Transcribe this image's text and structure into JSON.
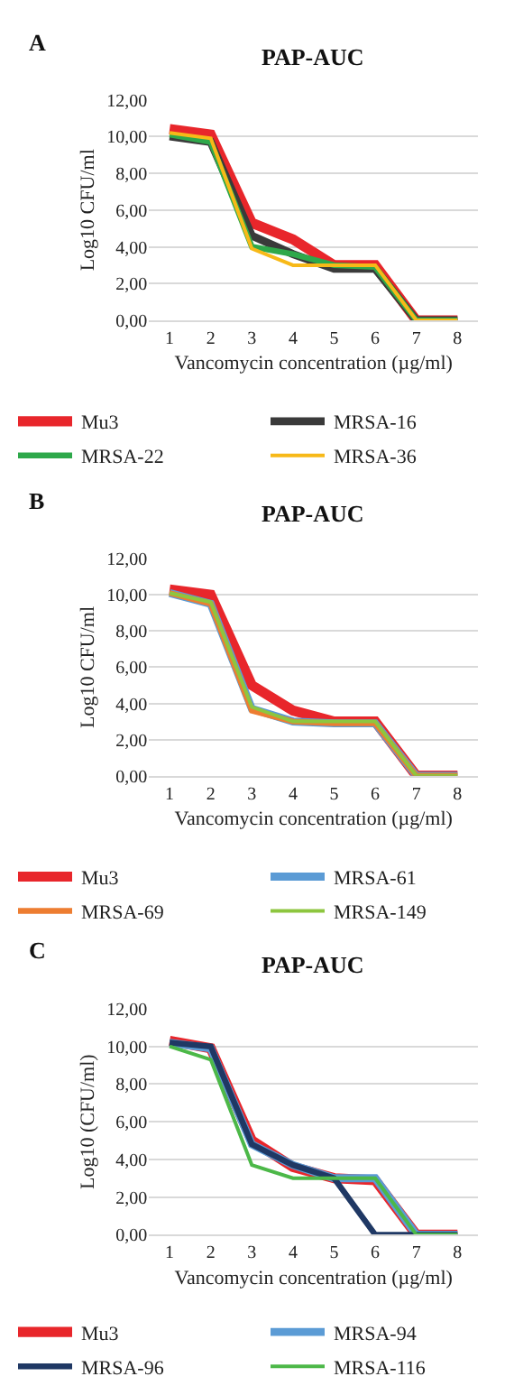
{
  "chart_data": [
    {
      "type": "line",
      "title": "PAP-AUC",
      "annotations": [
        "A"
      ],
      "xlabel": "Vancomycin concentration (µg/ml)",
      "ylabel": "Log10 CFU/ml",
      "categories": [
        "1",
        "2",
        "3",
        "4",
        "5",
        "6",
        "7",
        "8"
      ],
      "ylim": [
        0,
        12
      ],
      "yticks": [
        {
          "value": 0,
          "label": "0,00"
        },
        {
          "value": 2,
          "label": "2,00"
        },
        {
          "value": 4,
          "label": "4,00"
        },
        {
          "value": 6,
          "label": "6,00"
        },
        {
          "value": 8,
          "label": "8,00"
        },
        {
          "value": 10,
          "label": "10,00"
        },
        {
          "value": 12,
          "label": "12,00"
        }
      ],
      "grid": "y",
      "legend": "bottom",
      "marker": "none",
      "line_style": "solid",
      "series": [
        {
          "name": "Mu3",
          "color": "#e8262b",
          "values": [
            10.4,
            10.1,
            5.3,
            4.4,
            3.0,
            3.0,
            0,
            0
          ]
        },
        {
          "name": "MRSA-16",
          "color": "#3a3a3a",
          "values": [
            10.0,
            9.7,
            4.6,
            3.6,
            2.8,
            2.8,
            0,
            0
          ]
        },
        {
          "name": "MRSA-22",
          "color": "#2ea84a",
          "values": [
            10.1,
            9.7,
            4.0,
            3.6,
            3.0,
            2.9,
            0,
            0
          ]
        },
        {
          "name": "MRSA-36",
          "color": "#f7b918",
          "values": [
            10.2,
            9.9,
            3.9,
            3.0,
            3.0,
            3.0,
            0,
            0
          ]
        }
      ]
    },
    {
      "type": "line",
      "title": "PAP-AUC",
      "annotations": [
        "B"
      ],
      "xlabel": "Vancomycin concentration (µg/ml)",
      "ylabel": "Log10 CFU/ml",
      "categories": [
        "1",
        "2",
        "3",
        "4",
        "5",
        "6",
        "7",
        "8"
      ],
      "ylim": [
        0,
        12
      ],
      "yticks": [
        {
          "value": 0,
          "label": "0,00"
        },
        {
          "value": 2,
          "label": "2,00"
        },
        {
          "value": 4,
          "label": "4,00"
        },
        {
          "value": 6,
          "label": "6,00"
        },
        {
          "value": 8,
          "label": "8,00"
        },
        {
          "value": 10,
          "label": "10,00"
        },
        {
          "value": 12,
          "label": "12,00"
        }
      ],
      "grid": "y",
      "legend": "bottom",
      "marker": "none",
      "line_style": "solid",
      "series": [
        {
          "name": "Mu3",
          "color": "#e8262b",
          "values": [
            10.3,
            10.0,
            5.0,
            3.6,
            3.0,
            3.0,
            0,
            0
          ]
        },
        {
          "name": "MRSA-61",
          "color": "#5b9bd5",
          "values": [
            10.1,
            9.5,
            3.7,
            3.0,
            2.9,
            2.9,
            0,
            0
          ]
        },
        {
          "name": "MRSA-69",
          "color": "#ed7d31",
          "values": [
            10.1,
            9.5,
            3.6,
            3.0,
            2.9,
            2.9,
            0,
            0
          ]
        },
        {
          "name": "MRSA-149",
          "color": "#8dc63f",
          "values": [
            10.1,
            9.6,
            3.8,
            3.0,
            3.0,
            3.0,
            0,
            0
          ]
        }
      ]
    },
    {
      "type": "line",
      "title": "PAP-AUC",
      "annotations": [
        "C"
      ],
      "xlabel": "Vancomycin concentration (µg/ml)",
      "ylabel": "Log10 (CFU/ml)",
      "categories": [
        "1",
        "2",
        "3",
        "4",
        "5",
        "6",
        "7",
        "8"
      ],
      "ylim": [
        0,
        12
      ],
      "yticks": [
        {
          "value": 0,
          "label": "0,00"
        },
        {
          "value": 2,
          "label": "2,00"
        },
        {
          "value": 4,
          "label": "4,00"
        },
        {
          "value": 6,
          "label": "6,00"
        },
        {
          "value": 8,
          "label": "8,00"
        },
        {
          "value": 10,
          "label": "10,00"
        },
        {
          "value": 12,
          "label": "12,00"
        }
      ],
      "grid": "y",
      "legend": "bottom",
      "marker": "none",
      "line_style": "solid",
      "series": [
        {
          "name": "Mu3",
          "color": "#e8262b",
          "values": [
            10.3,
            9.9,
            5.0,
            3.6,
            3.0,
            2.9,
            0,
            0
          ]
        },
        {
          "name": "MRSA-94",
          "color": "#5b9bd5",
          "values": [
            10.2,
            9.9,
            4.8,
            3.7,
            3.0,
            3.0,
            0,
            0
          ]
        },
        {
          "name": "MRSA-96",
          "color": "#1f3864",
          "values": [
            10.2,
            10.0,
            4.8,
            3.7,
            3.0,
            0,
            0,
            0
          ]
        },
        {
          "name": "MRSA-116",
          "color": "#4cb848",
          "values": [
            10.0,
            9.3,
            3.7,
            3.0,
            3.0,
            3.0,
            0,
            0
          ]
        }
      ]
    }
  ]
}
